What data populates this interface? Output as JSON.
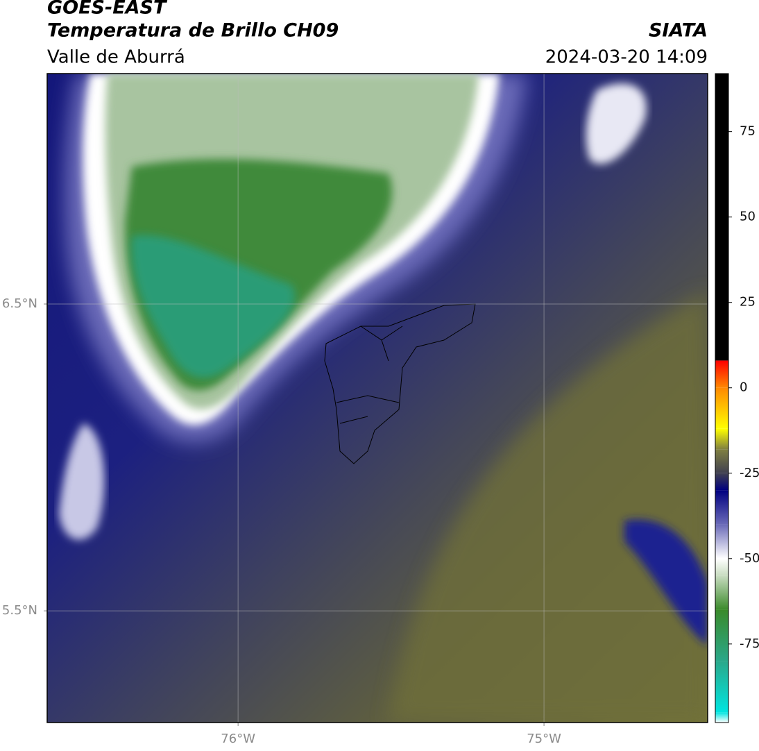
{
  "header": {
    "title_1": "GOES-EAST",
    "title_2": "Temperatura de Brillo CH09",
    "subtitle": "Valle de Aburrá",
    "source": "SIATA",
    "datetime": "2024-03-20 14:09"
  },
  "map": {
    "xlim": [
      -76.624,
      -74.465
    ],
    "ylim": [
      5.136,
      7.251
    ],
    "xticks": [
      {
        "value": -76,
        "label": "76°W"
      },
      {
        "value": -75,
        "label": "75°W"
      }
    ],
    "yticks": [
      {
        "value": 6.5,
        "label": "6.5°N"
      },
      {
        "value": 5.5,
        "label": "5.5°N"
      }
    ],
    "grid": true
  },
  "colorbar": {
    "lim": [
      -98,
      92
    ],
    "ticks": [
      75,
      50,
      25,
      0,
      -25,
      -50,
      -75
    ],
    "stops": [
      {
        "value": -98,
        "color": "#ffffff"
      },
      {
        "value": -95,
        "color": "#00e5e0"
      },
      {
        "value": -80,
        "color": "#2aa88a"
      },
      {
        "value": -65,
        "color": "#3a8a2a"
      },
      {
        "value": -55,
        "color": "#c8dcc0"
      },
      {
        "value": -50,
        "color": "#ffffff"
      },
      {
        "value": -40,
        "color": "#6a6ab8"
      },
      {
        "value": -30,
        "color": "#000080"
      },
      {
        "value": -25,
        "color": "#404050"
      },
      {
        "value": -18,
        "color": "#808040"
      },
      {
        "value": -12,
        "color": "#ffff00"
      },
      {
        "value": 0,
        "color": "#ff8800"
      },
      {
        "value": 8,
        "color": "#ff0000"
      },
      {
        "value": 8.01,
        "color": "#000000"
      },
      {
        "value": 92,
        "color": "#000000"
      }
    ]
  }
}
